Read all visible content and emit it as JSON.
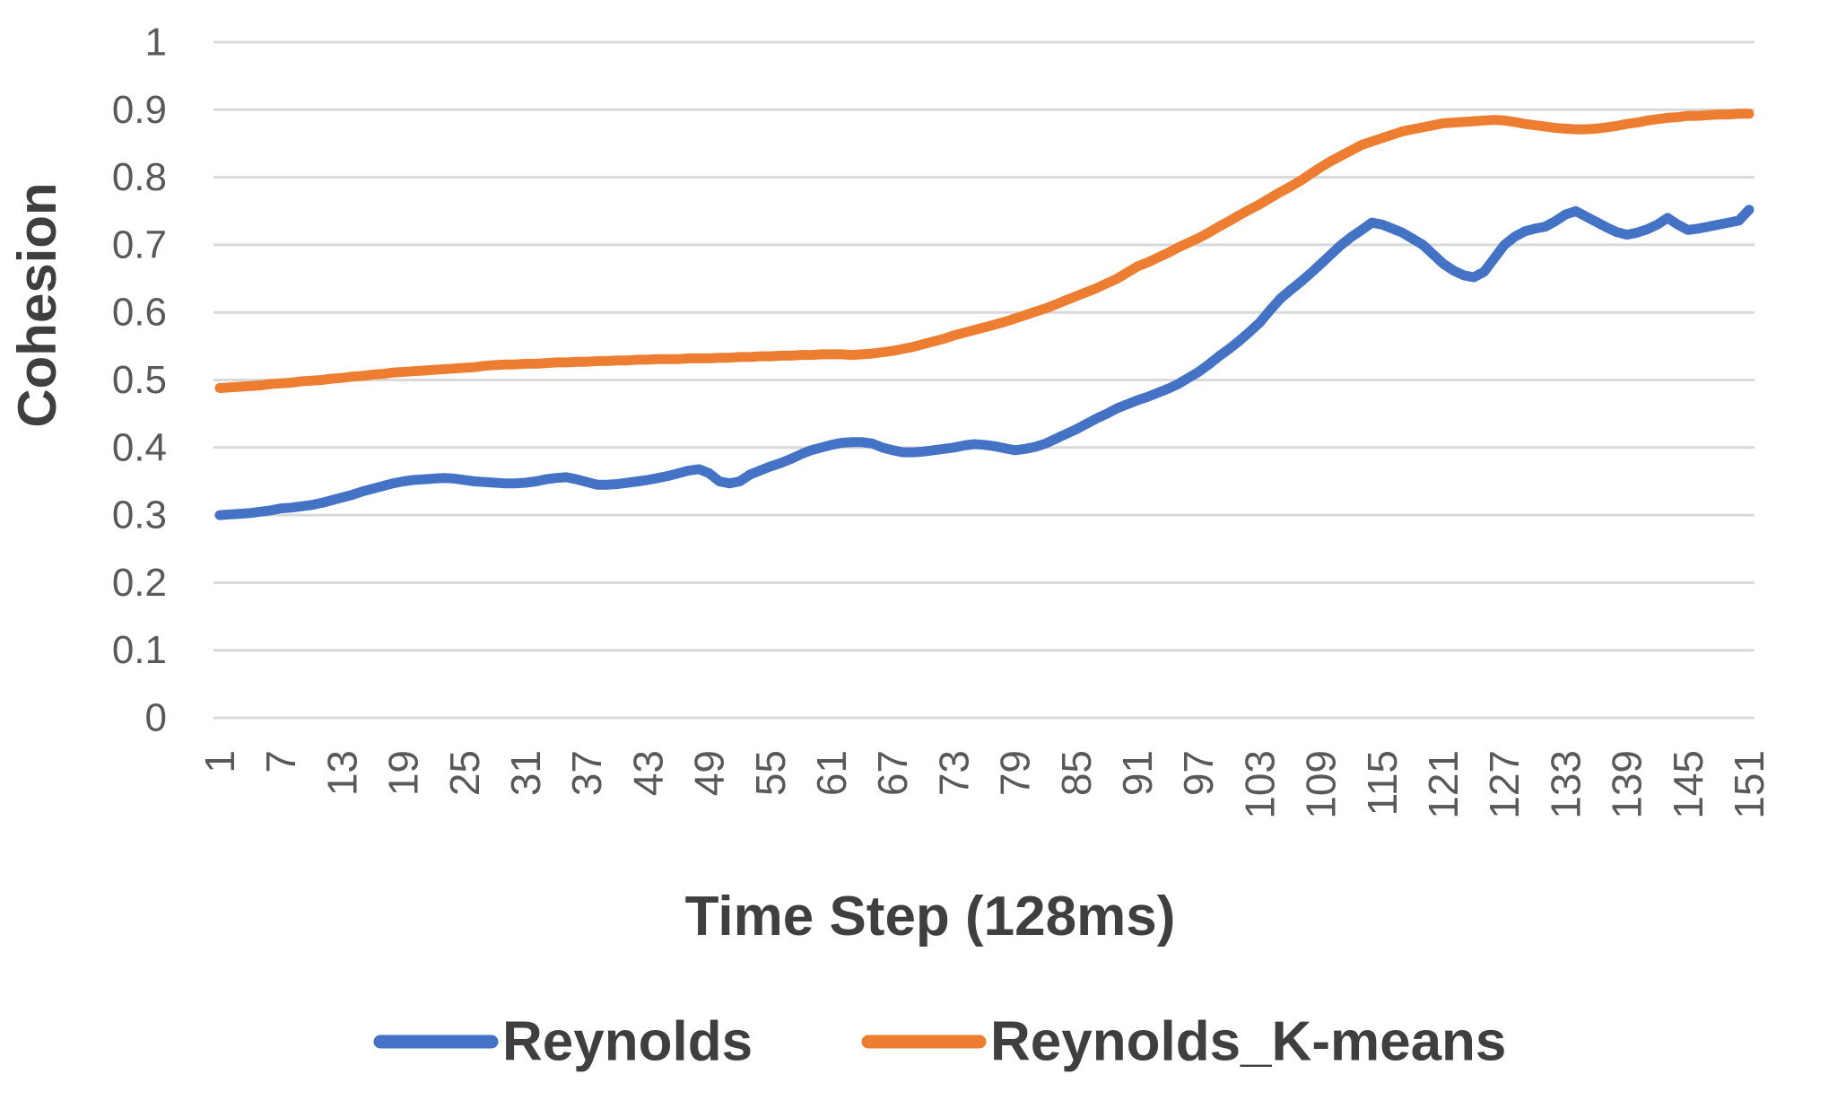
{
  "chart_data": {
    "type": "line",
    "title": "",
    "xlabel": "Time Step (128ms)",
    "ylabel": "Cohesion",
    "x_min": 1,
    "x_max": 151,
    "x_tick_labels": [
      1,
      7,
      13,
      19,
      25,
      31,
      37,
      43,
      49,
      55,
      61,
      67,
      73,
      79,
      85,
      91,
      97,
      103,
      109,
      115,
      121,
      127,
      133,
      139,
      145,
      151
    ],
    "y_tick_labels": [
      "0",
      "0.1",
      "0.2",
      "0.3",
      "0.4",
      "0.5",
      "0.6",
      "0.7",
      "0.8",
      "0.9",
      "1"
    ],
    "y_tick_values": [
      0,
      0.1,
      0.2,
      0.3,
      0.4,
      0.5,
      0.6,
      0.7,
      0.8,
      0.9,
      1
    ],
    "ylim": [
      0,
      1
    ],
    "grid": "horizontal-only",
    "legend_position": "bottom",
    "colors": {
      "reynolds": "#4472C4",
      "reynolds_k_means": "#ED7D31",
      "gridline": "#D9D9D9",
      "tick_text": "#595959",
      "title_text": "#3F3F3F"
    },
    "series": [
      {
        "name": "Reynolds",
        "color_key": "reynolds",
        "values": [
          0.3,
          0.301,
          0.302,
          0.303,
          0.305,
          0.307,
          0.31,
          0.311,
          0.313,
          0.315,
          0.318,
          0.322,
          0.326,
          0.33,
          0.335,
          0.339,
          0.343,
          0.347,
          0.35,
          0.352,
          0.353,
          0.354,
          0.355,
          0.354,
          0.352,
          0.35,
          0.349,
          0.348,
          0.347,
          0.347,
          0.348,
          0.35,
          0.353,
          0.355,
          0.356,
          0.353,
          0.349,
          0.345,
          0.345,
          0.346,
          0.348,
          0.35,
          0.352,
          0.355,
          0.358,
          0.362,
          0.366,
          0.368,
          0.362,
          0.35,
          0.347,
          0.35,
          0.36,
          0.366,
          0.372,
          0.377,
          0.383,
          0.39,
          0.396,
          0.4,
          0.404,
          0.407,
          0.408,
          0.408,
          0.406,
          0.4,
          0.396,
          0.393,
          0.393,
          0.394,
          0.396,
          0.398,
          0.4,
          0.403,
          0.405,
          0.404,
          0.402,
          0.399,
          0.396,
          0.398,
          0.401,
          0.406,
          0.413,
          0.42,
          0.427,
          0.435,
          0.443,
          0.45,
          0.458,
          0.464,
          0.47,
          0.475,
          0.481,
          0.487,
          0.494,
          0.503,
          0.512,
          0.523,
          0.535,
          0.546,
          0.558,
          0.571,
          0.585,
          0.603,
          0.62,
          0.633,
          0.645,
          0.658,
          0.672,
          0.686,
          0.7,
          0.712,
          0.722,
          0.733,
          0.73,
          0.724,
          0.718,
          0.709,
          0.7,
          0.686,
          0.672,
          0.662,
          0.655,
          0.652,
          0.66,
          0.68,
          0.7,
          0.712,
          0.72,
          0.724,
          0.727,
          0.735,
          0.745,
          0.75,
          0.742,
          0.734,
          0.726,
          0.719,
          0.715,
          0.718,
          0.723,
          0.73,
          0.74,
          0.73,
          0.722,
          0.724,
          0.727,
          0.73,
          0.733,
          0.736,
          0.752
        ]
      },
      {
        "name": "Reynolds_K-means",
        "color_key": "reynolds_k_means",
        "values": [
          0.488,
          0.489,
          0.49,
          0.491,
          0.492,
          0.494,
          0.495,
          0.496,
          0.498,
          0.499,
          0.5,
          0.502,
          0.503,
          0.505,
          0.506,
          0.508,
          0.509,
          0.511,
          0.512,
          0.513,
          0.514,
          0.515,
          0.516,
          0.517,
          0.518,
          0.519,
          0.521,
          0.522,
          0.523,
          0.523,
          0.524,
          0.524,
          0.525,
          0.526,
          0.526,
          0.527,
          0.527,
          0.528,
          0.528,
          0.529,
          0.529,
          0.53,
          0.53,
          0.531,
          0.531,
          0.531,
          0.532,
          0.532,
          0.532,
          0.533,
          0.533,
          0.534,
          0.534,
          0.535,
          0.535,
          0.536,
          0.536,
          0.537,
          0.537,
          0.538,
          0.538,
          0.538,
          0.537,
          0.538,
          0.539,
          0.541,
          0.543,
          0.546,
          0.549,
          0.553,
          0.557,
          0.561,
          0.566,
          0.57,
          0.574,
          0.578,
          0.582,
          0.586,
          0.591,
          0.596,
          0.601,
          0.606,
          0.612,
          0.618,
          0.624,
          0.63,
          0.636,
          0.643,
          0.65,
          0.659,
          0.668,
          0.674,
          0.681,
          0.688,
          0.696,
          0.703,
          0.71,
          0.718,
          0.727,
          0.735,
          0.744,
          0.752,
          0.76,
          0.769,
          0.778,
          0.786,
          0.795,
          0.805,
          0.815,
          0.824,
          0.832,
          0.84,
          0.848,
          0.853,
          0.858,
          0.863,
          0.868,
          0.871,
          0.874,
          0.877,
          0.88,
          0.881,
          0.882,
          0.883,
          0.884,
          0.885,
          0.884,
          0.882,
          0.879,
          0.877,
          0.875,
          0.873,
          0.872,
          0.871,
          0.871,
          0.872,
          0.874,
          0.876,
          0.879,
          0.881,
          0.884,
          0.886,
          0.888,
          0.889,
          0.891,
          0.891,
          0.892,
          0.893,
          0.893,
          0.894,
          0.894
        ]
      }
    ]
  }
}
